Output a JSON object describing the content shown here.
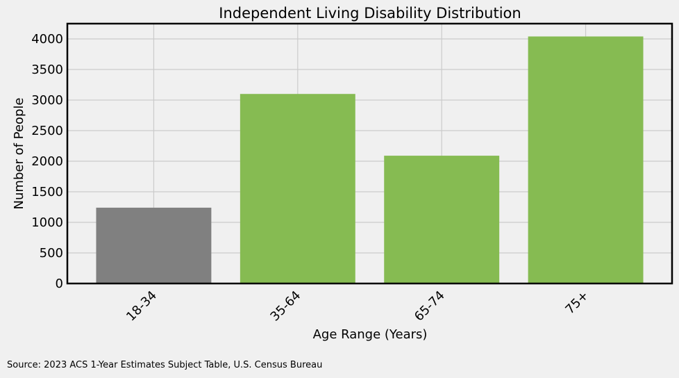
{
  "source_note": "Source: 2023 ACS 1-Year Estimates Subject Table, U.S. Census Bureau",
  "chart_data": {
    "type": "bar",
    "title": "Independent Living Disability Distribution",
    "xlabel": "Age Range (Years)",
    "ylabel": "Number of People",
    "categories": [
      "18-34",
      "35-64",
      "65-74",
      "75+"
    ],
    "values": [
      1240,
      3100,
      2090,
      4040
    ],
    "bar_colors": [
      "#808080",
      "#86bb52",
      "#86bb52",
      "#86bb52"
    ],
    "ylim": [
      0,
      4250
    ],
    "yticks": [
      0,
      500,
      1000,
      1500,
      2000,
      2500,
      3000,
      3500,
      4000
    ],
    "grid": true,
    "background": "#f0f0f0",
    "grid_color": "#cbcbcb"
  }
}
